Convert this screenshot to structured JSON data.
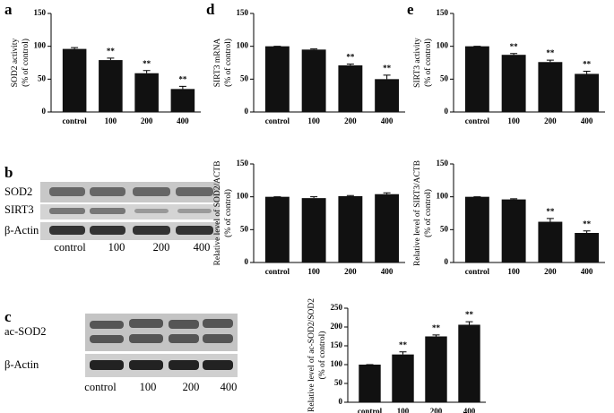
{
  "chart_data": [
    {
      "type": "bar",
      "panel_label": "a",
      "ylabel": [
        "SOD2 activity",
        "(% of control)"
      ],
      "categories": [
        "control",
        "100",
        "200",
        "400"
      ],
      "values": [
        96,
        79,
        59,
        35
      ],
      "errors": [
        2,
        3,
        4,
        4
      ],
      "annotations": [
        null,
        "**",
        "**",
        "**"
      ],
      "color": "#111111",
      "ylim": [
        0,
        150
      ],
      "yticks": [
        0,
        50,
        100,
        150
      ]
    },
    {
      "type": "bar",
      "panel_label": "d",
      "ylabel": [
        "SIRT3 mRNA",
        "(% of control)"
      ],
      "categories": [
        "control",
        "100",
        "200",
        "400"
      ],
      "values": [
        100,
        95,
        71,
        50
      ],
      "errors": [
        0,
        1,
        2,
        6
      ],
      "annotations": [
        null,
        null,
        "**",
        "**"
      ],
      "color": "#111111",
      "ylim": [
        0,
        150
      ],
      "yticks": [
        0,
        50,
        100,
        150
      ]
    },
    {
      "type": "bar",
      "panel_label": "e",
      "ylabel": [
        "SIRT3 activity",
        "(% of control)"
      ],
      "categories": [
        "control",
        "100",
        "200",
        "400"
      ],
      "values": [
        100,
        87,
        76,
        58
      ],
      "errors": [
        0,
        2,
        3,
        4
      ],
      "annotations": [
        null,
        "**",
        "**",
        "**"
      ],
      "color": "#111111",
      "ylim": [
        0,
        150
      ],
      "yticks": [
        0,
        50,
        100,
        150
      ]
    },
    {
      "type": "bar",
      "ylabel": [
        "Relative level of SOD2/ACTB",
        "(% of control)"
      ],
      "categories": [
        "control",
        "100",
        "200",
        "400"
      ],
      "values": [
        100,
        98,
        101,
        104
      ],
      "errors": [
        0,
        2,
        1,
        2
      ],
      "color": "#111111",
      "ylim": [
        0,
        150
      ],
      "yticks": [
        0,
        50,
        100,
        150
      ]
    },
    {
      "type": "bar",
      "ylabel": [
        "Relative level of SIRT3/ACTB",
        "(% of control)"
      ],
      "categories": [
        "control",
        "100",
        "200",
        "400"
      ],
      "values": [
        100,
        96,
        62,
        45
      ],
      "errors": [
        0,
        1,
        5,
        3
      ],
      "annotations": [
        null,
        null,
        "**",
        "**"
      ],
      "color": "#111111",
      "ylim": [
        0,
        150
      ],
      "yticks": [
        0,
        50,
        100,
        150
      ]
    },
    {
      "type": "bar",
      "ylabel": [
        "Relative level of ac-SOD2/SOD2",
        "(% of control)"
      ],
      "categories": [
        "control",
        "100",
        "200",
        "400"
      ],
      "values": [
        100,
        127,
        175,
        206
      ],
      "errors": [
        0,
        7,
        4,
        8
      ],
      "annotations": [
        null,
        "**",
        "**",
        "**"
      ],
      "color": "#111111",
      "ylim": [
        0,
        250
      ],
      "yticks": [
        0,
        50,
        100,
        150,
        200,
        250
      ]
    }
  ],
  "blots": [
    {
      "panel_label": "b",
      "rows": [
        "SOD2",
        "SIRT3",
        "β-Actin"
      ],
      "lanes": [
        "control",
        "100",
        "200",
        "400"
      ]
    },
    {
      "panel_label": "c",
      "rows": [
        "ac-SOD2",
        "β-Actin"
      ],
      "lanes": [
        "control",
        "100",
        "200",
        "400"
      ]
    }
  ]
}
